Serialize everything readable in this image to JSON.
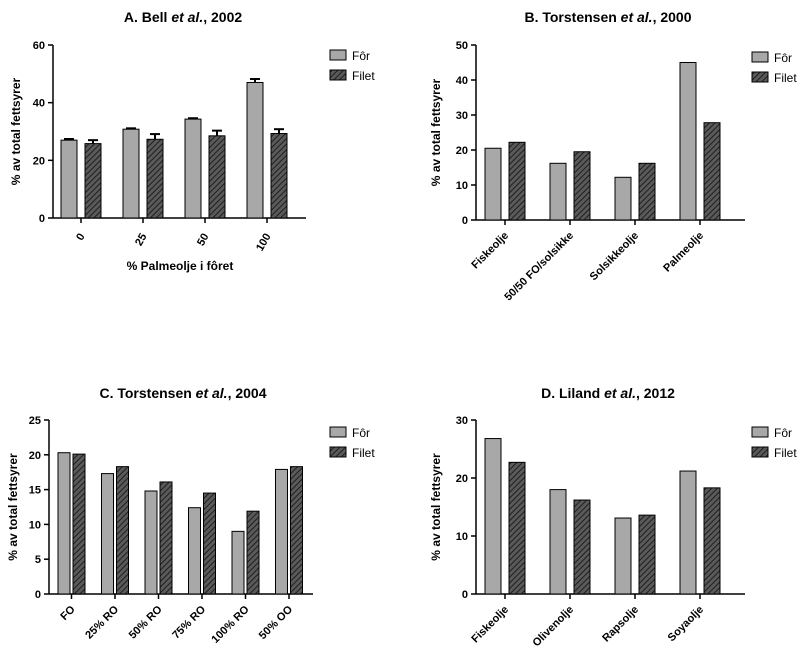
{
  "chart_data": [
    {
      "id": "A",
      "type": "bar",
      "title_prefix": "A. Bell ",
      "title_italic": "et al.",
      "title_suffix": ", 2002",
      "ylabel": "% av total fettsyrer",
      "xlabel": "% Palmeolje i fôret",
      "ylim": [
        0,
        60
      ],
      "yticks": [
        0,
        20,
        40,
        60
      ],
      "categories": [
        "0",
        "25",
        "50",
        "100"
      ],
      "series": [
        {
          "name": "Fôr",
          "values": [
            27,
            30.8,
            34.3,
            47
          ],
          "errors": [
            0.4,
            0.3,
            0.3,
            1.2
          ]
        },
        {
          "name": "Filet",
          "values": [
            25.8,
            27.3,
            28.5,
            29.3
          ],
          "errors": [
            1.2,
            1.8,
            1.8,
            1.5
          ]
        }
      ],
      "legend_position": "top-right"
    },
    {
      "id": "B",
      "type": "bar",
      "title_prefix": "B. Torstensen ",
      "title_italic": "et al.",
      "title_suffix": ", 2000",
      "ylabel": "% av total fettsyrer",
      "xlabel": "",
      "ylim": [
        0,
        50
      ],
      "yticks": [
        0,
        10,
        20,
        30,
        40,
        50
      ],
      "categories": [
        "Fiskeolje",
        "50/50 FO/solsikke",
        "Solsikkeolje",
        "Palmeolje"
      ],
      "series": [
        {
          "name": "Fôr",
          "values": [
            20.5,
            16.2,
            12.2,
            45
          ]
        },
        {
          "name": "Filet",
          "values": [
            22.2,
            19.5,
            16.2,
            27.8
          ]
        }
      ],
      "legend_position": "top-right"
    },
    {
      "id": "C",
      "type": "bar",
      "title_prefix": "C. Torstensen ",
      "title_italic": "et al.",
      "title_suffix": ", 2004",
      "ylabel": "% av total fettsyrer",
      "xlabel": "",
      "ylim": [
        0,
        25
      ],
      "yticks": [
        0,
        5,
        10,
        15,
        20,
        25
      ],
      "categories": [
        "FO",
        "25% RO",
        "50% RO",
        "75% RO",
        "100% RO",
        "50% OO"
      ],
      "series": [
        {
          "name": "Fôr",
          "values": [
            20.3,
            17.3,
            14.8,
            12.4,
            9,
            17.9
          ]
        },
        {
          "name": "Filet",
          "values": [
            20.1,
            18.3,
            16.1,
            14.5,
            11.9,
            18.3
          ]
        }
      ],
      "legend_position": "top-right"
    },
    {
      "id": "D",
      "type": "bar",
      "title_prefix": "D. Liland ",
      "title_italic": "et al.",
      "title_suffix": ", 2012",
      "ylabel": "% av total fettsyrer",
      "xlabel": "",
      "ylim": [
        0,
        30
      ],
      "yticks": [
        0,
        10,
        20,
        30
      ],
      "categories": [
        "Fiskeolje",
        "Olivenolje",
        "Rapsolje",
        "Soyaolje"
      ],
      "series": [
        {
          "name": "Fôr",
          "values": [
            26.8,
            18,
            13.1,
            21.2
          ]
        },
        {
          "name": "Filet",
          "values": [
            22.7,
            16.2,
            13.6,
            18.3
          ]
        }
      ],
      "legend_position": "top-right"
    }
  ],
  "colors": {
    "for_fill": "#a8a8a8",
    "filet_fill": "#444444",
    "axis": "#000000"
  }
}
